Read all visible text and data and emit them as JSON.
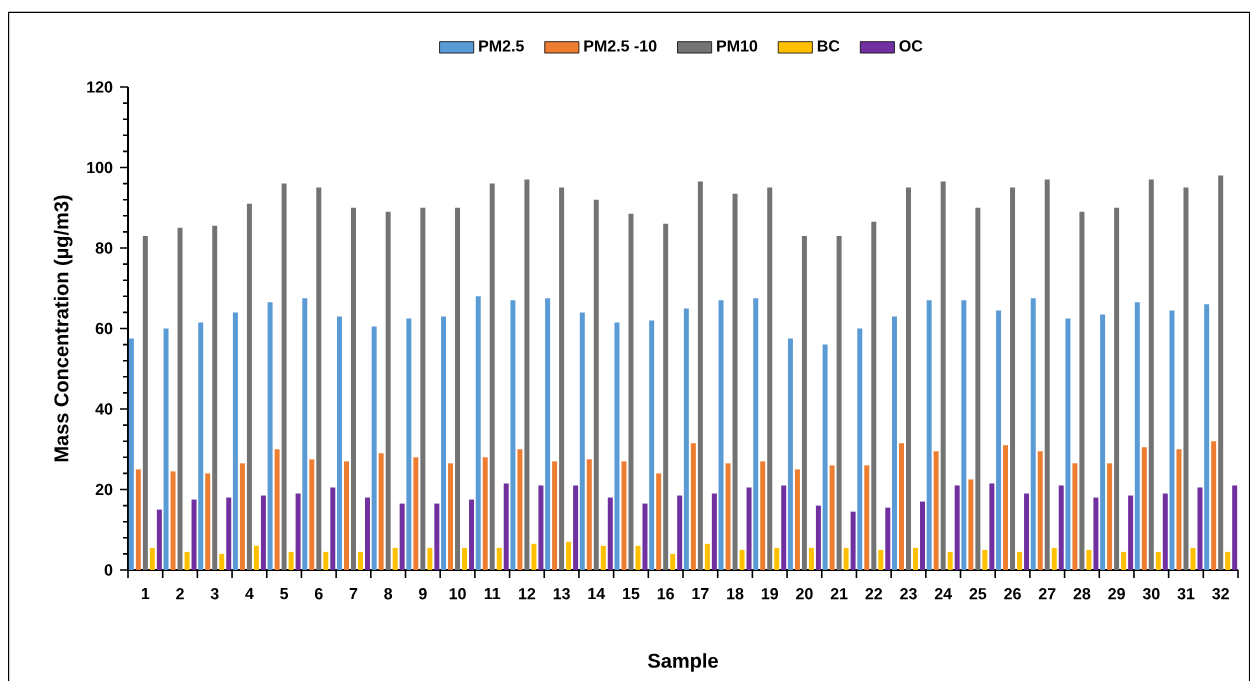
{
  "chart_data": {
    "type": "bar",
    "xlabel": "Sample",
    "ylabel": "Mass Concentration (µg/m3)",
    "categories": [
      "1",
      "2",
      "3",
      "4",
      "5",
      "6",
      "7",
      "8",
      "9",
      "10",
      "11",
      "12",
      "13",
      "14",
      "15",
      "16",
      "17",
      "18",
      "19",
      "20",
      "21",
      "22",
      "23",
      "24",
      "25",
      "26",
      "27",
      "28",
      "29",
      "30",
      "31",
      "32"
    ],
    "series": [
      {
        "name": "PM2.5",
        "color": "#5b9bd5",
        "values": [
          57.5,
          60,
          61.5,
          64,
          66.5,
          67.5,
          63,
          60.5,
          62.5,
          63,
          68,
          67,
          67.5,
          64,
          61.5,
          62,
          65,
          67,
          67.5,
          57.5,
          56,
          60,
          63,
          67,
          67,
          64.5,
          67.5,
          62.5,
          63.5,
          66.5,
          64.5,
          66
        ]
      },
      {
        "name": "PM2.5 -10",
        "color": "#ed7d31",
        "values": [
          25,
          24.5,
          24,
          26.5,
          30,
          27.5,
          27,
          29,
          28,
          26.5,
          28,
          30,
          27,
          27.5,
          27,
          24,
          31.5,
          26.5,
          27,
          25,
          26,
          26,
          31.5,
          29.5,
          22.5,
          31,
          29.5,
          26.5,
          26.5,
          30.5,
          30,
          32
        ]
      },
      {
        "name": "PM10",
        "color": "#737373",
        "values": [
          83,
          85,
          85.5,
          91,
          96,
          95,
          90,
          89,
          90,
          90,
          96,
          97,
          95,
          92,
          88.5,
          86,
          96.5,
          93.5,
          95,
          83,
          83,
          86.5,
          95,
          96.5,
          90,
          95,
          97,
          89,
          90,
          97,
          95,
          98
        ]
      },
      {
        "name": "BC",
        "color": "#ffc000",
        "values": [
          5.5,
          4.5,
          4,
          6,
          4.5,
          4.5,
          4.5,
          5.5,
          5.5,
          5.5,
          5.5,
          6.5,
          7,
          6,
          6,
          4,
          6.5,
          5,
          5.5,
          5.5,
          5.5,
          5,
          5.5,
          4.5,
          5,
          4.5,
          5.5,
          5,
          4.5,
          4.5,
          5.5,
          4.5
        ]
      },
      {
        "name": "OC",
        "color": "#7030a0",
        "values": [
          15,
          17.5,
          18,
          18.5,
          19,
          20.5,
          18,
          16.5,
          16.5,
          17.5,
          21.5,
          21,
          21,
          18,
          16.5,
          18.5,
          19,
          20.5,
          21,
          16,
          14.5,
          15.5,
          17,
          21,
          21.5,
          19,
          21,
          18,
          18.5,
          19,
          20.5,
          21
        ]
      }
    ],
    "ylim": [
      0,
      120
    ],
    "yticks": [
      0,
      20,
      40,
      60,
      80,
      100,
      120
    ],
    "grid": false,
    "legend": "top"
  }
}
